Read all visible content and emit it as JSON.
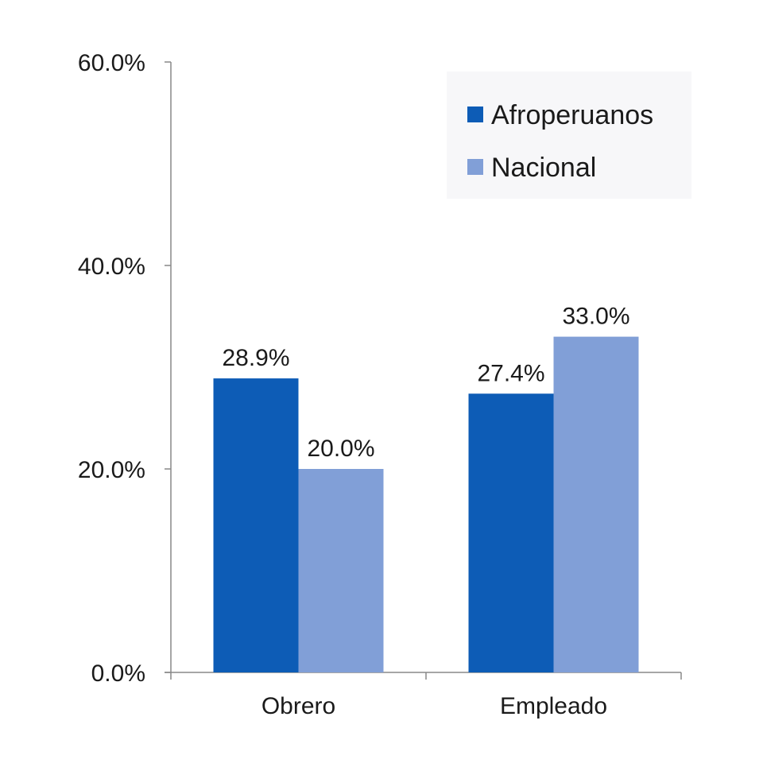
{
  "chart_data": {
    "type": "bar",
    "title": "",
    "xlabel": "",
    "ylabel": "",
    "categories": [
      "Obrero",
      "Empleado"
    ],
    "series": [
      {
        "name": "Afroperuanos",
        "values": [
          28.9,
          27.4
        ],
        "labels": [
          "28.9%",
          "27.4%"
        ],
        "color": "#0d5cb6"
      },
      {
        "name": "Nacional",
        "values": [
          20.0,
          33.0
        ],
        "labels": [
          "20.0%",
          "33.0%"
        ],
        "color": "#819fd7"
      }
    ],
    "ylim": [
      0,
      60
    ],
    "yticks": [
      0,
      20,
      40,
      60
    ],
    "ytick_labels": [
      "0.0%",
      "20.0%",
      "40.0%",
      "60.0%"
    ],
    "grid": false,
    "legend": "top-right"
  }
}
